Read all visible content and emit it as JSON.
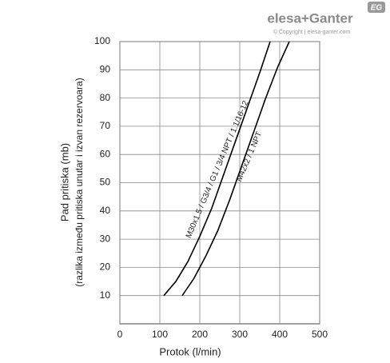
{
  "branding": {
    "logo": "elesa+Ganter",
    "badge": "EG",
    "copyright": "© Copyright | elesa-ganter.com"
  },
  "chart_data": {
    "type": "line",
    "y_label": [
      "Pad pritiska (mb)",
      "(razlika između pritiska unutar i izvan rezervoara)"
    ],
    "x_label": "Protok (l/min)",
    "xlim": [
      0,
      500
    ],
    "xticks": [
      0,
      100,
      200,
      300,
      400,
      500
    ],
    "ylim": [
      0,
      100
    ],
    "yticks": [
      10,
      20,
      30,
      40,
      50,
      60,
      70,
      80,
      90,
      100
    ],
    "grid": true,
    "series": [
      {
        "name": "M30x1.5 / G3/4 / G1 / 3/4 NPT / 1.1/16-12",
        "color": "#000000",
        "x": [
          110,
          140,
          170,
          200,
          230,
          260,
          290,
          320,
          350,
          376
        ],
        "values": [
          10,
          15,
          22,
          31,
          41,
          53,
          65,
          77,
          89,
          100
        ]
      },
      {
        "name": "M42x2 / 1 NPT",
        "color": "#000000",
        "x": [
          156,
          185,
          215,
          245,
          275,
          305,
          335,
          365,
          395,
          424
        ],
        "values": [
          10,
          16,
          24,
          33,
          44,
          56,
          68,
          80,
          91,
          100
        ]
      }
    ]
  }
}
